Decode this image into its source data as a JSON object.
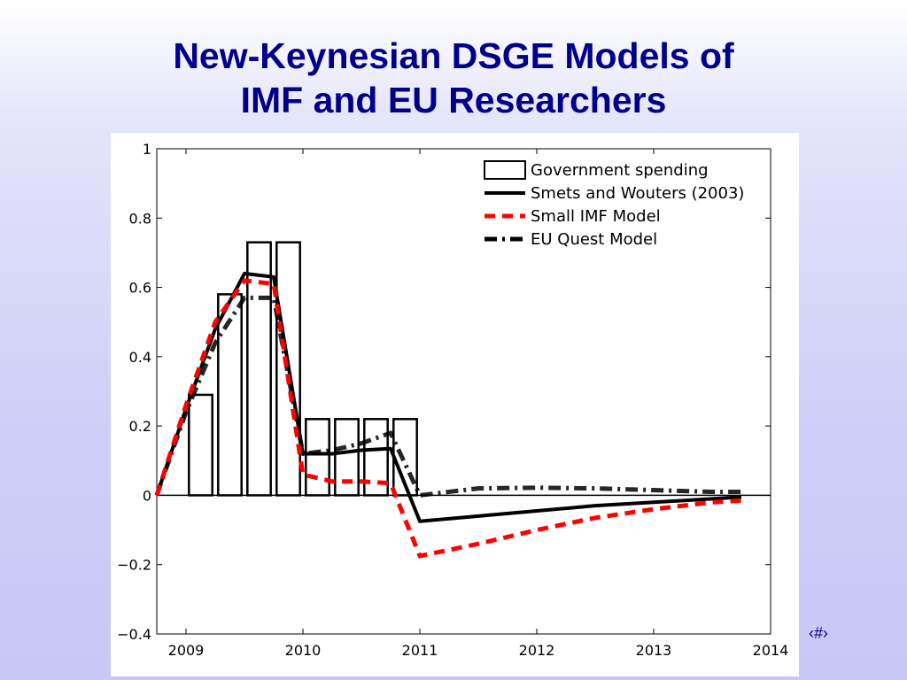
{
  "slide": {
    "title_line1": "New-Keynesian DSGE Models of",
    "title_line2": "IMF and EU Researchers",
    "slide_number": "‹#›"
  },
  "chart_data": {
    "type": "bar",
    "xlim": [
      2008.75,
      2014
    ],
    "ylim": [
      -0.4,
      1
    ],
    "x_ticks": [
      2009,
      2010,
      2011,
      2012,
      2013,
      2014
    ],
    "x_tick_labels": [
      "2009",
      "2010",
      "2011",
      "2012",
      "2013",
      "2014"
    ],
    "y_ticks": [
      -0.4,
      -0.2,
      0,
      0.2,
      0.4,
      0.6,
      0.8,
      1
    ],
    "y_tick_labels": [
      "−0.4",
      "−0.2",
      "0",
      "0.2",
      "0.4",
      "0.6",
      "0.8",
      "1"
    ],
    "grid": false,
    "legend_position": "top-right",
    "bars": {
      "name": "Government spending",
      "color": "#000000",
      "fill": "none",
      "x": [
        2009.0,
        2009.25,
        2009.5,
        2009.75,
        2010.0,
        2010.25,
        2010.5,
        2010.75
      ],
      "values": [
        0.29,
        0.58,
        0.73,
        0.73,
        0.22,
        0.22,
        0.22,
        0.22
      ]
    },
    "series": [
      {
        "name": "Smets and Wouters (2003)",
        "color": "#000000",
        "style": "solid",
        "x": [
          2008.75,
          2009.0,
          2009.25,
          2009.5,
          2009.75,
          2010.0,
          2010.25,
          2010.5,
          2010.75,
          2011.0,
          2011.5,
          2012.0,
          2012.5,
          2013.0,
          2013.5,
          2013.75
        ],
        "y": [
          0.0,
          0.25,
          0.48,
          0.64,
          0.63,
          0.12,
          0.12,
          0.13,
          0.135,
          -0.075,
          -0.06,
          -0.045,
          -0.03,
          -0.02,
          -0.01,
          -0.005
        ]
      },
      {
        "name": "Small IMF Model",
        "color": "#ff0000",
        "style": "dashed",
        "x": [
          2008.75,
          2009.0,
          2009.25,
          2009.5,
          2009.75,
          2010.0,
          2010.25,
          2010.5,
          2010.75,
          2011.0,
          2011.5,
          2012.0,
          2012.5,
          2013.0,
          2013.5,
          2013.75
        ],
        "y": [
          0.0,
          0.26,
          0.5,
          0.62,
          0.61,
          0.06,
          0.04,
          0.04,
          0.035,
          -0.175,
          -0.14,
          -0.1,
          -0.065,
          -0.04,
          -0.02,
          -0.015
        ]
      },
      {
        "name": "EU Quest Model",
        "color": "#000000",
        "style": "dashdot",
        "x": [
          2008.75,
          2009.0,
          2009.25,
          2009.5,
          2009.75,
          2010.0,
          2010.25,
          2010.5,
          2010.75,
          2011.0,
          2011.5,
          2012.0,
          2012.5,
          2013.0,
          2013.5,
          2013.75
        ],
        "y": [
          0.0,
          0.24,
          0.44,
          0.57,
          0.57,
          0.12,
          0.13,
          0.15,
          0.18,
          0.0,
          0.02,
          0.022,
          0.02,
          0.015,
          0.01,
          0.01
        ]
      }
    ]
  }
}
